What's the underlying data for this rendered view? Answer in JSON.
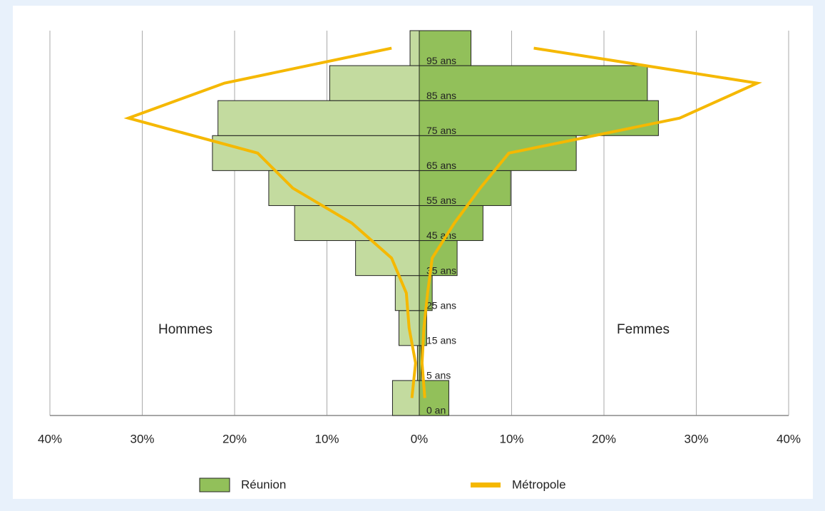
{
  "chart_data": {
    "type": "pyramid",
    "categories": [
      "0 an",
      "5 ans",
      "15 ans",
      "25 ans",
      "35 ans",
      "45 ans",
      "55 ans",
      "65 ans",
      "75 ans",
      "85 ans",
      "95 ans"
    ],
    "series": [
      {
        "name": "Réunion",
        "kind": "bar",
        "color": "#92c05a",
        "left_color": "#c3db9f",
        "hommes": [
          -2.9,
          -0.2,
          -2.2,
          -2.6,
          -6.9,
          -13.5,
          -16.3,
          -22.4,
          -21.8,
          -9.7,
          -1.0
        ],
        "femmes": [
          3.2,
          0.2,
          0.8,
          1.4,
          4.1,
          6.9,
          9.9,
          17.0,
          25.9,
          24.7,
          5.6
        ]
      },
      {
        "name": "Métropole",
        "kind": "line",
        "color": "#f5b800",
        "hommes": [
          -0.8,
          -0.4,
          -1.1,
          -1.4,
          -3.0,
          -7.3,
          -13.7,
          -17.5,
          -31.5,
          -21.1,
          -3.0
        ],
        "femmes": [
          0.6,
          0.3,
          0.5,
          0.9,
          1.4,
          3.8,
          6.6,
          9.7,
          28.2,
          36.6,
          12.4
        ]
      }
    ],
    "annotations": [
      {
        "text": "Hommes",
        "side": "left"
      },
      {
        "text": "Femmes",
        "side": "right"
      }
    ],
    "xlim": [
      -40,
      40
    ],
    "xticks": [
      {
        "value": -40,
        "label": "40%"
      },
      {
        "value": -30,
        "label": "30%"
      },
      {
        "value": -20,
        "label": "20%"
      },
      {
        "value": -10,
        "label": "10%"
      },
      {
        "value": 0,
        "label": "0%"
      },
      {
        "value": 10,
        "label": "10%"
      },
      {
        "value": 20,
        "label": "20%"
      },
      {
        "value": 30,
        "label": "30%"
      },
      {
        "value": 40,
        "label": "40%"
      }
    ],
    "grid": true
  }
}
